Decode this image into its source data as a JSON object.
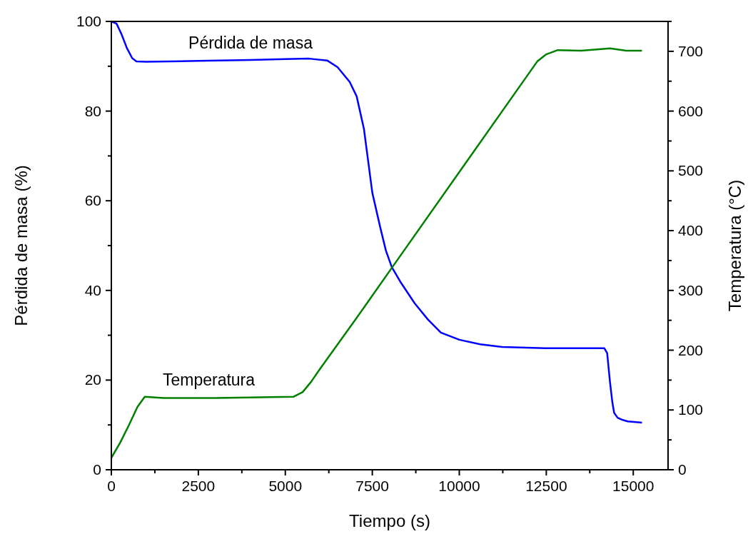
{
  "chart_data": {
    "type": "line",
    "xlabel": "Tiempo (s)",
    "ylabel": "Pérdida de masa (%)",
    "y2label": "Temperatura (°C)",
    "xlim": [
      0,
      16000
    ],
    "xticks": [
      0,
      2500,
      5000,
      7500,
      10000,
      12500,
      15000
    ],
    "ylim": [
      0,
      100
    ],
    "yticks": [
      0,
      20,
      40,
      60,
      80,
      100
    ],
    "y2lim": [
      0,
      750
    ],
    "y2ticks": [
      0,
      100,
      200,
      300,
      400,
      500,
      600,
      700
    ],
    "annotations": [
      {
        "text": "Pérdida de masa",
        "x": 4000,
        "y": 91.4
      },
      {
        "text": "Temperatura",
        "x": 2800,
        "y": 16.3
      }
    ],
    "series": [
      {
        "color": "#0000ff",
        "x": [
          0,
          150,
          300,
          450,
          600,
          720,
          1000,
          2500,
          4000,
          5000,
          5680,
          6200,
          6500,
          6850,
          7050,
          7260,
          7500,
          7730,
          7890,
          8060,
          8300,
          8720,
          9100,
          9470,
          10000,
          10600,
          11230,
          12500,
          13500,
          14170,
          14250,
          14330,
          14400,
          14450,
          14550,
          14700,
          14840,
          15250
        ],
        "values": [
          100,
          99.5,
          97,
          94,
          91.8,
          91.1,
          91,
          91.2,
          91.4,
          91.6,
          91.7,
          91.3,
          89.8,
          86.5,
          83.3,
          76,
          61.8,
          54,
          48.9,
          45.2,
          42,
          37.1,
          33.5,
          30.6,
          29,
          28,
          27.4,
          27.1,
          27.1,
          27.1,
          26,
          19.6,
          15,
          12.7,
          11.6,
          11.1,
          10.8,
          10.5
        ]
      },
      {
        "color": "#008000",
        "axis": "y2",
        "x": [
          0,
          250,
          500,
          750,
          960,
          1500,
          3000,
          5230,
          5500,
          5740,
          6000,
          7050,
          8040,
          10000,
          12240,
          12500,
          12830,
          13500,
          14330,
          14800,
          15250
        ],
        "values": [
          20,
          45,
          74,
          105,
          122,
          120,
          120,
          122,
          130,
          147,
          169,
          254,
          336,
          498,
          683,
          695,
          702,
          701,
          705,
          701,
          701
        ]
      }
    ]
  }
}
